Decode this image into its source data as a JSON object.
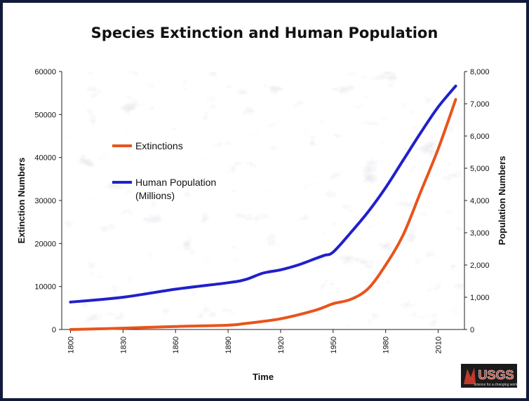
{
  "chart_data": {
    "type": "line",
    "title": "Species Extinction and Human Population",
    "xlabel": "Time",
    "ylabel_left": "Extinction Numbers",
    "ylabel_right": "Population Numbers",
    "xlim": [
      1795,
      2025
    ],
    "ylim_left": [
      0,
      60000
    ],
    "ylim_right": [
      0,
      8000
    ],
    "x_ticks": [
      1800,
      1830,
      1860,
      1890,
      1920,
      1950,
      1980,
      2010
    ],
    "y_ticks_left": [
      "0",
      "10000",
      "20000",
      "30000",
      "40000",
      "50000",
      "60000"
    ],
    "y_ticks_right": [
      "0",
      "1,000",
      "2,000",
      "3,000",
      "4,000",
      "5,000",
      "6,000",
      "7,000",
      "8,000"
    ],
    "grid": false,
    "legend_position": "upper-left",
    "series": [
      {
        "name": "Extinctions",
        "axis": "left",
        "color": "#e8541c",
        "x": [
          1800,
          1830,
          1860,
          1890,
          1900,
          1920,
          1940,
          1950,
          1960,
          1970,
          1980,
          1990,
          2000,
          2010,
          2020
        ],
        "y": [
          0,
          300,
          700,
          1000,
          1400,
          2500,
          4500,
          6000,
          7000,
          9500,
          15000,
          22000,
          32000,
          42000,
          53500
        ]
      },
      {
        "name": "Human Population (Millions)",
        "axis": "right",
        "color": "#2020cc",
        "x": [
          1800,
          1830,
          1860,
          1890,
          1900,
          1910,
          1920,
          1930,
          1940,
          1945,
          1950,
          1960,
          1970,
          1980,
          1990,
          2000,
          2010,
          2020
        ],
        "y": [
          850,
          1000,
          1250,
          1450,
          1550,
          1750,
          1850,
          2000,
          2200,
          2300,
          2400,
          3000,
          3650,
          4400,
          5250,
          6100,
          6900,
          7550
        ]
      }
    ]
  },
  "logo": {
    "text": "USGS",
    "tagline": "science for a changing world",
    "color": "#c0392b"
  }
}
